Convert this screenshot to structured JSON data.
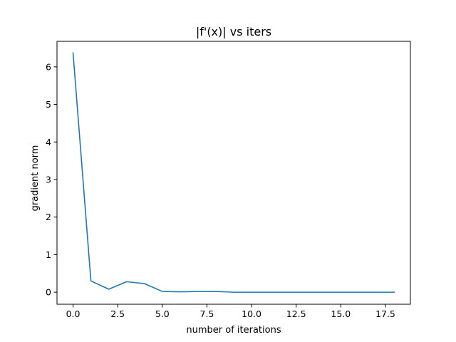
{
  "chart_data": {
    "type": "line",
    "title": "|f'(x)| vs iters",
    "xlabel": "number of iterations",
    "ylabel": "gradient norm",
    "xlim": [
      -0.9,
      18.9
    ],
    "ylim": [
      -0.32,
      6.68
    ],
    "xticks": [
      0,
      2.5,
      5,
      7.5,
      10,
      12.5,
      15,
      17.5
    ],
    "xtick_labels": [
      "0.0",
      "2.5",
      "5.0",
      "7.5",
      "10.0",
      "12.5",
      "15.0",
      "17.5"
    ],
    "yticks": [
      0,
      1,
      2,
      3,
      4,
      5,
      6
    ],
    "ytick_labels": [
      "0",
      "1",
      "2",
      "3",
      "4",
      "5",
      "6"
    ],
    "grid": false,
    "series": [
      {
        "color": "#1f77b4",
        "x": [
          0,
          1,
          2,
          3,
          4,
          5,
          6,
          7,
          8,
          9,
          10,
          11,
          12,
          13,
          14,
          15,
          16,
          17,
          18
        ],
        "y": [
          6.37,
          0.3,
          0.08,
          0.28,
          0.23,
          0.02,
          0.01,
          0.02,
          0.02,
          0.0,
          0.0,
          0.0,
          0.0,
          0.0,
          0.0,
          0.0,
          0.0,
          0.0,
          0.0
        ]
      }
    ]
  }
}
